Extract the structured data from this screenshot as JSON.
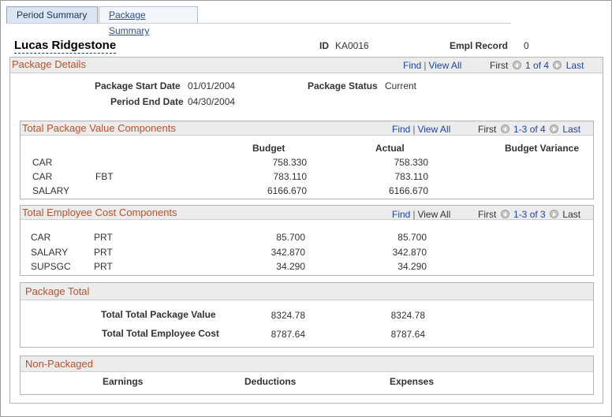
{
  "tabs": [
    {
      "label": "Period Summary",
      "active": true
    },
    {
      "label": "Package Summary",
      "active": false
    }
  ],
  "employee": {
    "name": "Lucas Ridgestone",
    "id_label": "ID",
    "id_value": "KA0016",
    "empl_record_label": "Empl Record",
    "empl_record_value": "0"
  },
  "package_details": {
    "title": "Package Details",
    "nav": {
      "find": "Find",
      "view_all": "View All",
      "first": "First",
      "range": "1 of 4",
      "last": "Last"
    },
    "start_date_label": "Package Start Date",
    "start_date_value": "01/01/2004",
    "status_label": "Package Status",
    "status_value": "Current",
    "end_date_label": "Period End Date",
    "end_date_value": "04/30/2004"
  },
  "total_package_value": {
    "title": "Total Package Value Components",
    "nav": {
      "find": "Find",
      "view_all": "View All",
      "first": "First",
      "range": "1-3 of 4",
      "last": "Last"
    },
    "columns": [
      "Budget",
      "Actual",
      "Budget Variance"
    ],
    "rows": [
      {
        "component": "CAR",
        "sub": "",
        "budget": "758.330",
        "actual": "758.330"
      },
      {
        "component": "CAR",
        "sub": "FBT",
        "budget": "783.110",
        "actual": "783.110"
      },
      {
        "component": "SALARY",
        "sub": "",
        "budget": "6166.670",
        "actual": "6166.670"
      }
    ]
  },
  "total_employee_cost": {
    "title": "Total Employee Cost Components",
    "nav": {
      "find": "Find",
      "view_all": "View All",
      "first": "First",
      "range": "1-3 of 3",
      "last": "Last"
    },
    "rows": [
      {
        "component": "CAR",
        "sub": "PRT",
        "budget": "85.700",
        "actual": "85.700"
      },
      {
        "component": "SALARY",
        "sub": "PRT",
        "budget": "342.870",
        "actual": "342.870"
      },
      {
        "component": "SUPSGC",
        "sub": "PRT",
        "budget": "34.290",
        "actual": "34.290"
      }
    ]
  },
  "package_total": {
    "title": "Package Total",
    "rows": [
      {
        "label": "Total Total Package Value",
        "budget": "8324.78",
        "actual": "8324.78"
      },
      {
        "label": "Total Total Employee Cost",
        "budget": "8787.64",
        "actual": "8787.64"
      }
    ]
  },
  "non_packaged": {
    "title": "Non-Packaged",
    "columns": [
      "Earnings",
      "Deductions",
      "Expenses"
    ]
  },
  "colors": {
    "section_title": "#b4532d",
    "link": "#1f45a3",
    "header_bg": "#ececec"
  }
}
